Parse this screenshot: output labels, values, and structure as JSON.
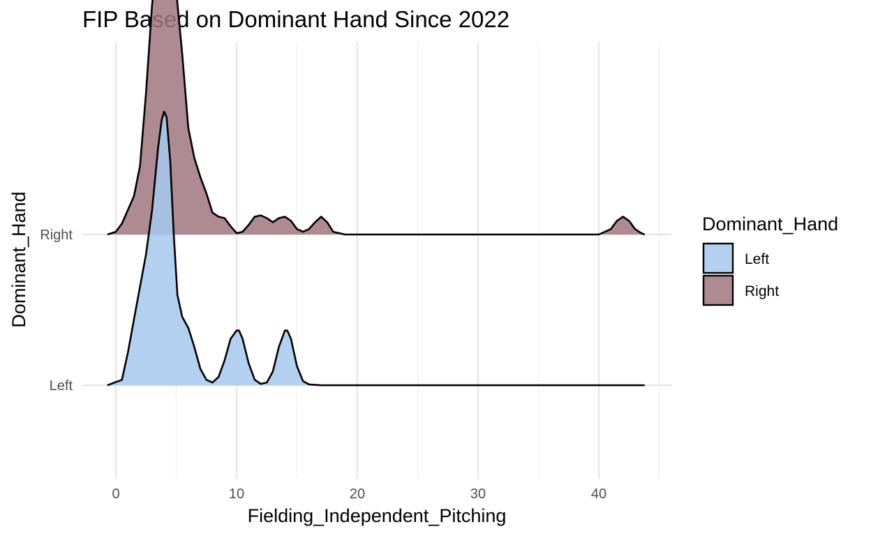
{
  "chart_data": {
    "type": "ridgeline",
    "title": "FIP Based on Dominant Hand Since 2022",
    "xlabel": "Fielding_Independent_Pitching",
    "ylabel": "Dominant_Hand",
    "x_ticks": [
      0,
      10,
      20,
      30,
      40
    ],
    "xlim": [
      -2.5,
      46.5
    ],
    "categories": [
      "Left",
      "Right"
    ],
    "legend": {
      "title": "Dominant_Hand",
      "position": "right"
    },
    "grid": true,
    "series": [
      {
        "name": "Left",
        "color": "#A6C8EE",
        "x": [
          -0.7,
          0.5,
          1.0,
          1.5,
          2.0,
          2.5,
          3.0,
          3.5,
          3.8,
          4.0,
          4.2,
          4.5,
          4.8,
          5.1,
          5.5,
          6.0,
          6.5,
          7.0,
          7.5,
          8.0,
          8.5,
          9.0,
          9.5,
          10.0,
          10.2,
          10.5,
          11.0,
          11.5,
          12.0,
          12.5,
          13.0,
          13.5,
          14.0,
          14.2,
          14.5,
          15.0,
          15.5,
          16.0,
          17.0,
          20.0,
          30.0,
          40.0,
          43.8
        ],
        "density": [
          0.0,
          0.02,
          0.12,
          0.24,
          0.36,
          0.48,
          0.64,
          0.87,
          0.97,
          1.0,
          0.98,
          0.82,
          0.55,
          0.33,
          0.25,
          0.21,
          0.14,
          0.06,
          0.02,
          0.01,
          0.03,
          0.09,
          0.17,
          0.2,
          0.2,
          0.17,
          0.08,
          0.02,
          0.005,
          0.01,
          0.05,
          0.14,
          0.2,
          0.2,
          0.17,
          0.07,
          0.015,
          0.003,
          0.0,
          0.0,
          0.0,
          0.0,
          0.0
        ]
      },
      {
        "name": "Right",
        "color": "#A0767F",
        "x": [
          -0.7,
          0.0,
          0.5,
          1.0,
          1.5,
          2.0,
          2.5,
          3.0,
          3.4,
          3.7,
          4.0,
          4.5,
          5.0,
          5.5,
          6.0,
          6.5,
          7.0,
          7.5,
          8.0,
          8.5,
          9.0,
          9.5,
          10.0,
          10.5,
          11.0,
          11.5,
          12.0,
          12.5,
          13.0,
          13.5,
          14.0,
          14.5,
          15.0,
          15.5,
          16.0,
          16.5,
          17.0,
          17.5,
          18.0,
          19.0,
          25.0,
          35.0,
          40.0,
          41.0,
          41.5,
          42.0,
          42.5,
          43.0,
          43.5,
          43.8
        ],
        "density": [
          0.0,
          0.01,
          0.04,
          0.09,
          0.14,
          0.25,
          0.52,
          0.84,
          0.99,
          1.0,
          0.96,
          0.92,
          0.89,
          0.66,
          0.39,
          0.28,
          0.21,
          0.15,
          0.08,
          0.065,
          0.06,
          0.03,
          0.005,
          0.01,
          0.035,
          0.065,
          0.07,
          0.06,
          0.045,
          0.06,
          0.065,
          0.05,
          0.02,
          0.01,
          0.02,
          0.045,
          0.065,
          0.045,
          0.01,
          0.0,
          0.0,
          0.0,
          0.0,
          0.02,
          0.05,
          0.065,
          0.05,
          0.02,
          0.005,
          0.0
        ]
      }
    ]
  }
}
